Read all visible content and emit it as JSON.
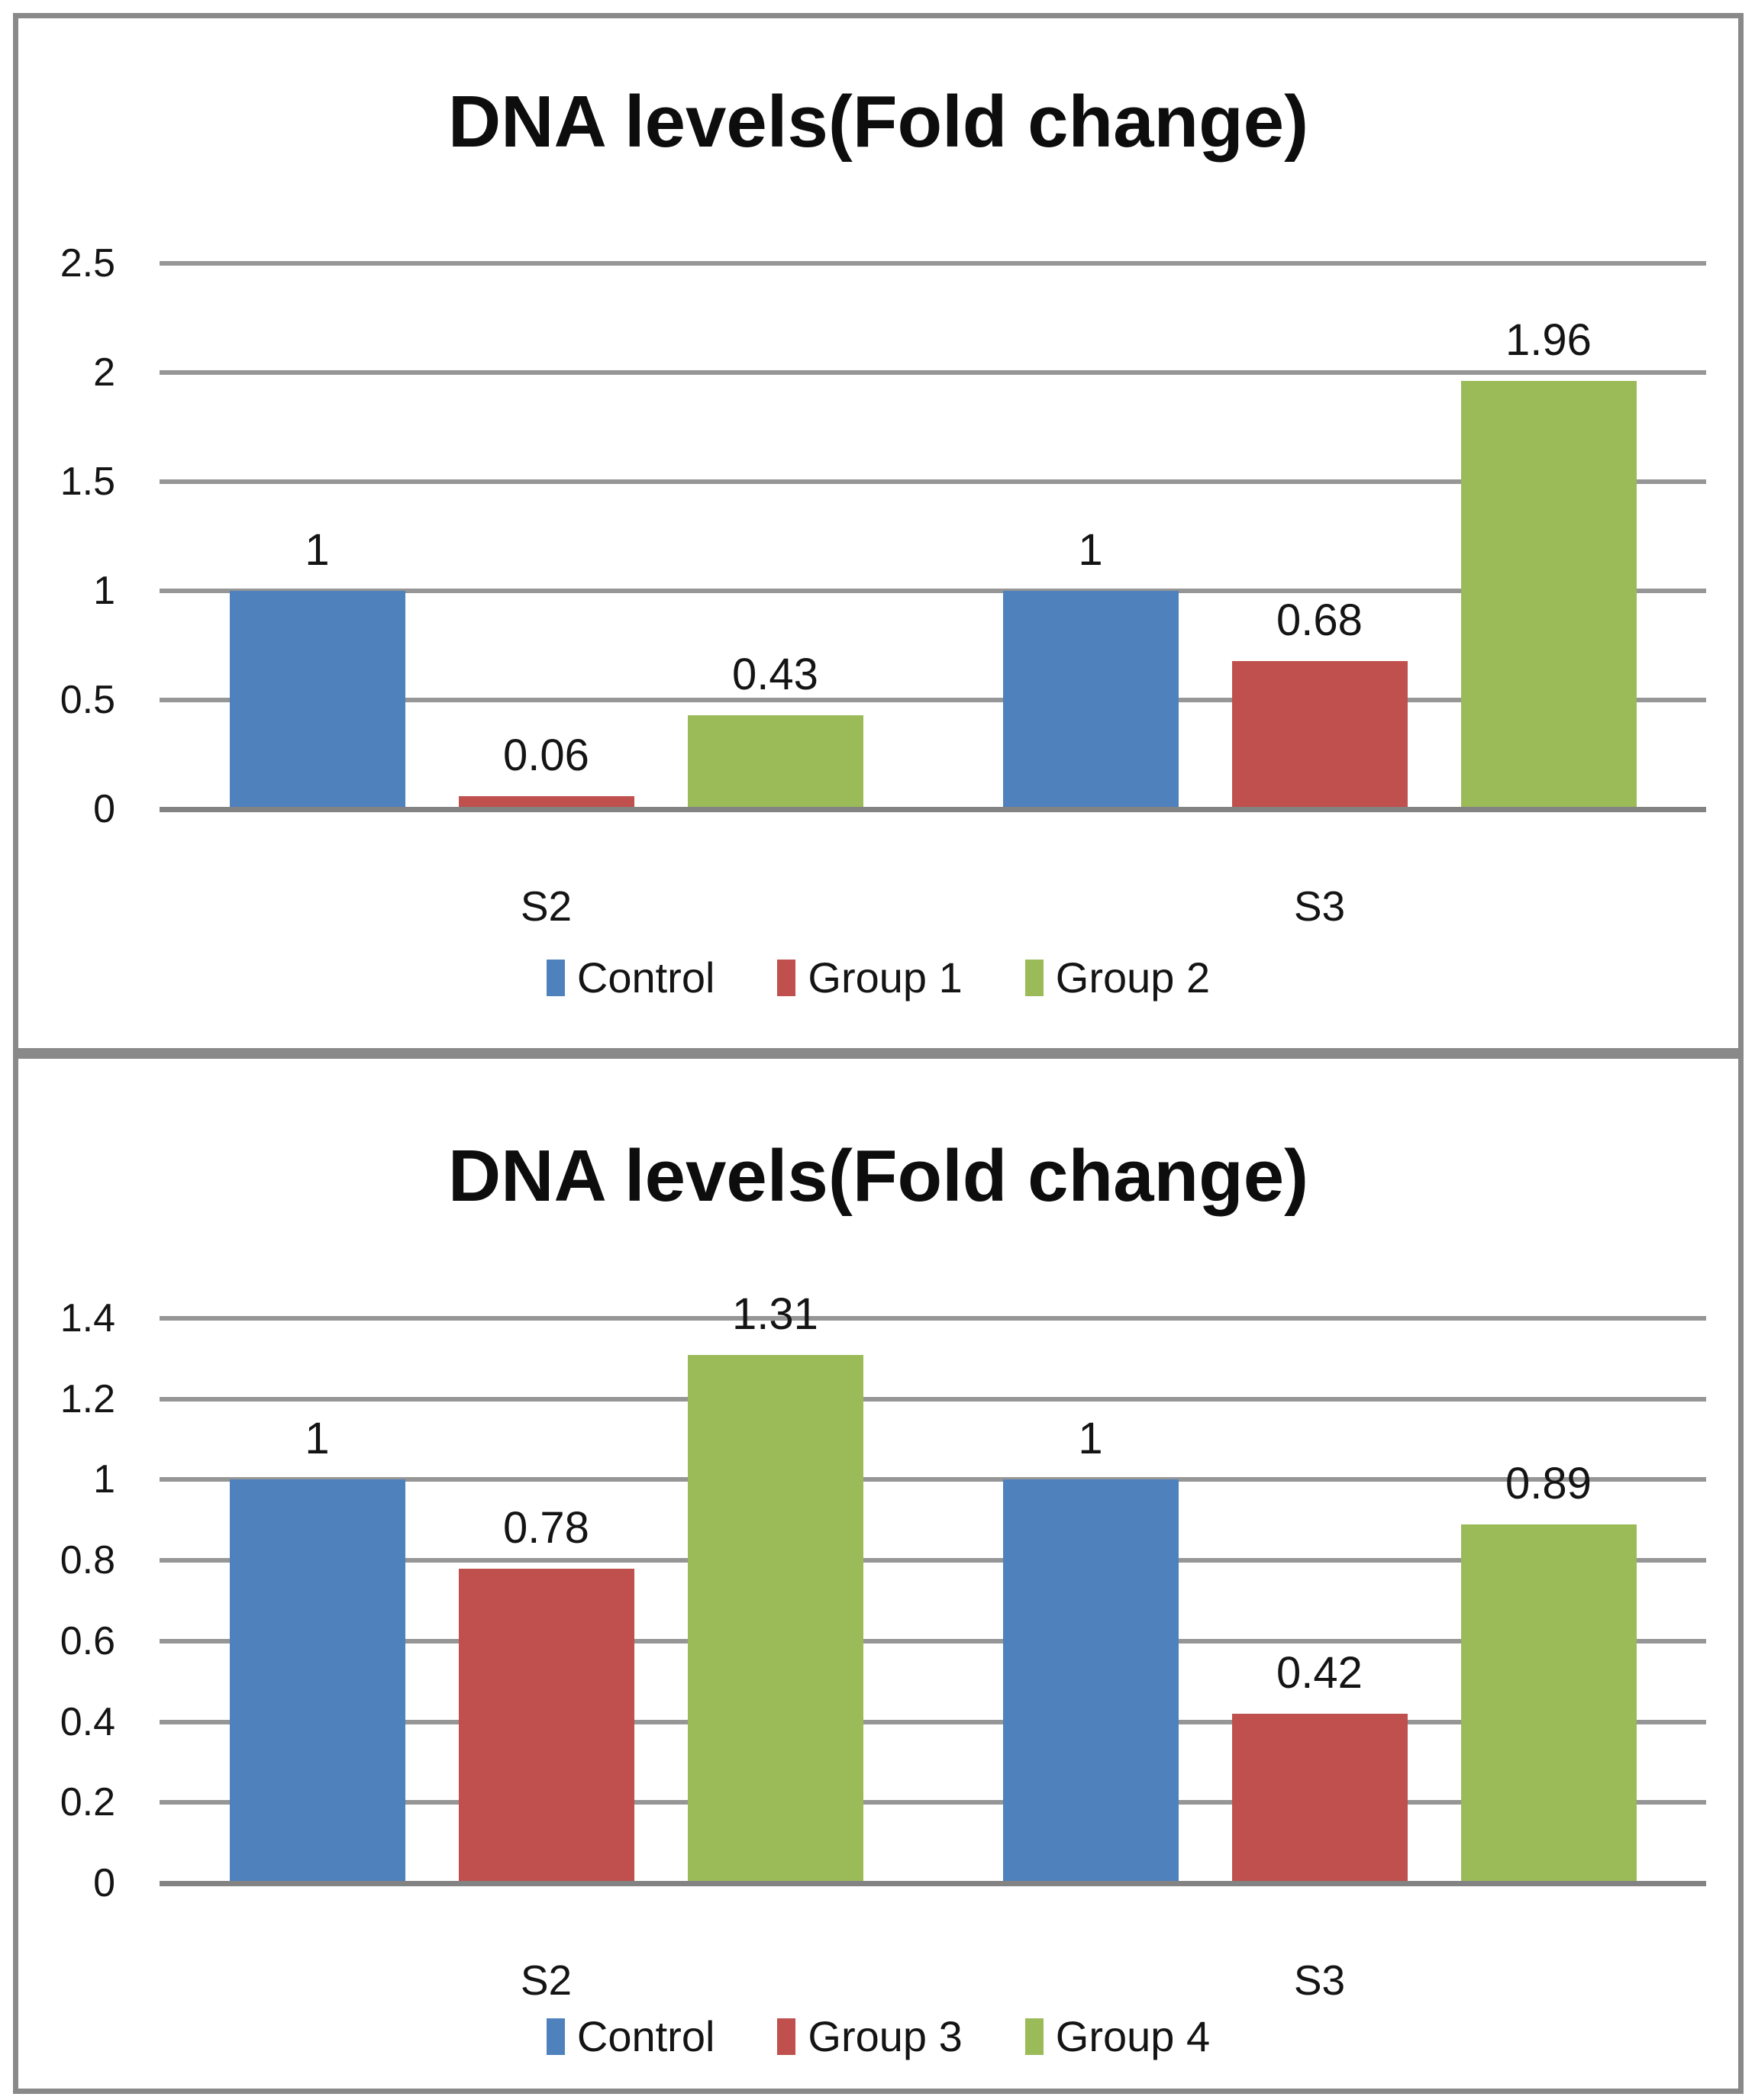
{
  "chart_data": [
    {
      "type": "bar",
      "title": "DNA levels(Fold change)",
      "categories": [
        "S2",
        "S3"
      ],
      "series": [
        {
          "name": "Control",
          "color": "#4f81bd",
          "values": [
            1,
            1
          ],
          "labels": [
            "1",
            "1"
          ]
        },
        {
          "name": "Group 1",
          "color": "#c0504d",
          "values": [
            0.06,
            0.68
          ],
          "labels": [
            "0.06",
            "0.68"
          ]
        },
        {
          "name": "Group 2",
          "color": "#9bbb59",
          "values": [
            0.43,
            1.96
          ],
          "labels": [
            "0.43",
            "1.96"
          ]
        }
      ],
      "xlabel": "",
      "ylabel": "",
      "ylim": [
        0,
        2.5
      ],
      "yticks": [
        "2.5",
        "2",
        "1.5",
        "1",
        "0.5",
        "0"
      ],
      "grid": true,
      "legend_position": "bottom"
    },
    {
      "type": "bar",
      "title": "DNA levels(Fold change)",
      "categories": [
        "S2",
        "S3"
      ],
      "series": [
        {
          "name": "Control",
          "color": "#4f81bd",
          "values": [
            1,
            1
          ],
          "labels": [
            "1",
            "1"
          ]
        },
        {
          "name": "Group 3",
          "color": "#c0504d",
          "values": [
            0.78,
            0.42
          ],
          "labels": [
            "0.78",
            "0.42"
          ]
        },
        {
          "name": "Group 4",
          "color": "#9bbb59",
          "values": [
            1.31,
            0.89
          ],
          "labels": [
            "1.31",
            "0.89"
          ]
        }
      ],
      "xlabel": "",
      "ylabel": "",
      "ylim": [
        0,
        1.4
      ],
      "yticks": [
        "1.4",
        "1.2",
        "1",
        "0.8",
        "0.6",
        "0.4",
        "0.2",
        "0"
      ],
      "grid": true,
      "legend_position": "bottom"
    }
  ],
  "colors": {
    "bar_blue": "#4f81bd",
    "bar_red": "#c0504d",
    "bar_green": "#9bbb59",
    "gridline": "#969696",
    "panel_border": "#898989",
    "text": "#141414",
    "background": "#ffffff"
  }
}
